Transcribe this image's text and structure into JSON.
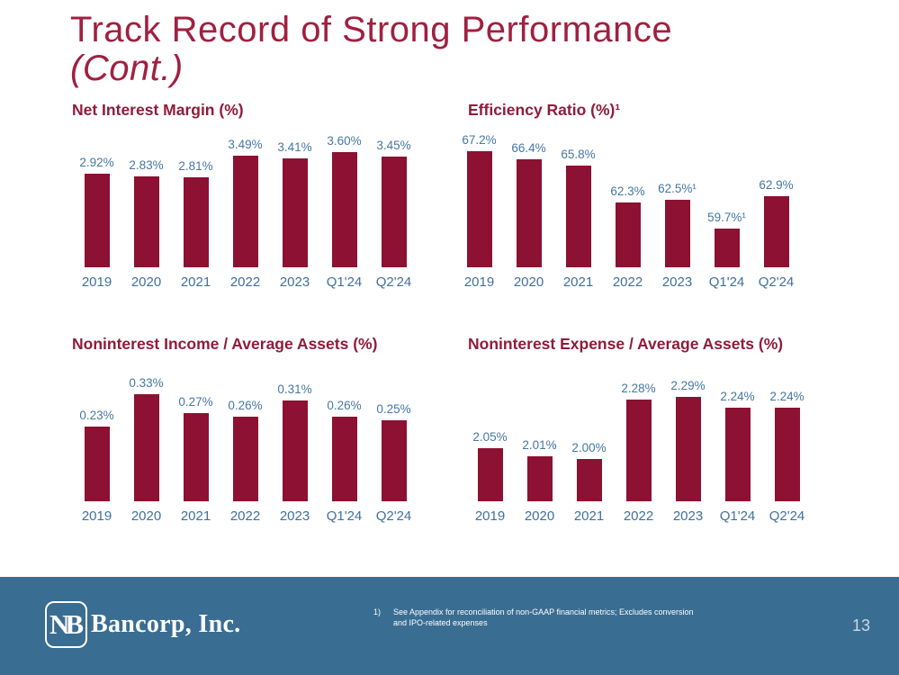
{
  "slide": {
    "title_line1": "Track Record of Strong Performance",
    "title_line2": "(Cont.)"
  },
  "chart_data": [
    {
      "type": "bar",
      "title": "Net Interest Margin (%)",
      "categories": [
        "2019",
        "2020",
        "2021",
        "2022",
        "2023",
        "Q1'24",
        "Q2'24"
      ],
      "values": [
        2.92,
        2.83,
        2.81,
        3.49,
        3.41,
        3.6,
        3.45
      ],
      "labels": [
        "2.92%",
        "2.83%",
        "2.81%",
        "3.49%",
        "3.41%",
        "3.60%",
        "3.45%"
      ],
      "ylim": [
        0,
        3.65
      ],
      "grid": false,
      "bar_color": "#8C1132",
      "value_label_position": "above"
    },
    {
      "type": "bar",
      "title": "Efficiency Ratio (%)¹",
      "categories": [
        "2019",
        "2020",
        "2021",
        "2022",
        "2023",
        "Q1'24",
        "Q2'24"
      ],
      "values": [
        67.2,
        66.4,
        65.8,
        62.3,
        62.5,
        59.7,
        62.9
      ],
      "labels": [
        "67.2%",
        "66.4%",
        "65.8%",
        "62.3%",
        "62.5%¹",
        "59.7%¹",
        "62.9%"
      ],
      "ylim": [
        56,
        67.3
      ],
      "grid": false,
      "bar_color": "#8C1132",
      "value_label_position": "above"
    },
    {
      "type": "bar",
      "title": "Noninterest Income / Average Assets (%)",
      "categories": [
        "2019",
        "2020",
        "2021",
        "2022",
        "2023",
        "Q1'24",
        "Q2'24"
      ],
      "values": [
        0.23,
        0.33,
        0.27,
        0.26,
        0.31,
        0.26,
        0.25
      ],
      "labels": [
        "0.23%",
        "0.33%",
        "0.27%",
        "0.26%",
        "0.31%",
        "0.26%",
        "0.25%"
      ],
      "ylim": [
        0,
        0.36
      ],
      "grid": false,
      "bar_color": "#8C1132",
      "value_label_position": "above"
    },
    {
      "type": "bar",
      "title": "Noninterest Expense / Average Assets (%)",
      "categories": [
        "2019",
        "2020",
        "2021",
        "2022",
        "2023",
        "Q1'24",
        "Q2'24"
      ],
      "values": [
        2.05,
        2.01,
        2.0,
        2.28,
        2.29,
        2.24,
        2.24
      ],
      "labels": [
        "2.05%",
        "2.01%",
        "2.00%",
        "2.28%",
        "2.29%",
        "2.24%",
        "2.24%"
      ],
      "ylim": [
        1.8,
        2.35
      ],
      "grid": false,
      "bar_color": "#8C1132",
      "value_label_position": "above"
    }
  ],
  "footer": {
    "logo_monogram": "NB",
    "company_name": "Bancorp, Inc.",
    "footnote_marker": "1)",
    "footnote_line1": "See Appendix for reconciliation of non-GAAP financial metrics; Excludes conversion",
    "footnote_line2": "and IPO-related expenses",
    "page_number": "13"
  },
  "colors": {
    "bar_maroon": "#8C1132",
    "title_maroon": "#A02040",
    "chart_title_maroon": "#8F1C3B",
    "label_blue": "#4677A3",
    "footer_blue": "#3A6D92"
  }
}
